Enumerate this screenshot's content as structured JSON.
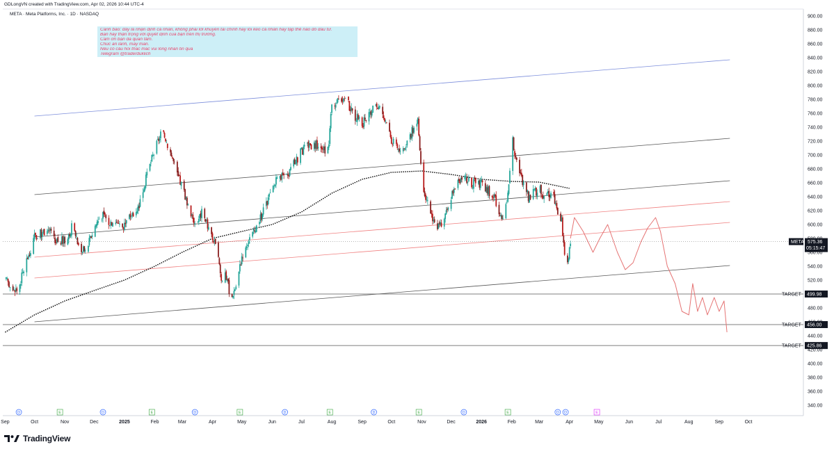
{
  "header": {
    "credit": "GDLongVN created with TradingView.com, Apr 02, 2026 10:44 UTC-4",
    "symbol_line": "META · Meta Platforms, Inc. · 1D · NASDAQ"
  },
  "note": {
    "lines": [
      "Cảnh báo: đây là nhận định cá nhân, không phải lời khuyên tài chính hay lôi kéo cá nhân hay tập thể nào đó đầu tư.",
      "Bạn hãy thận trọng với quyết định của bạn trên thị trường.",
      "Cảm ơn bạn đã quan tâm.",
      "Chúc an lành, may mắn.",
      "Nếu có câu hỏi thắc mắc vui lòng nhắn tin qua",
      "Telegram @traderduklich"
    ]
  },
  "footer": {
    "brand": "TradingView"
  },
  "colors": {
    "up": "#26a69a",
    "down": "#b71c1c",
    "candle_dark": "#8a1f1f",
    "upper_channel": "#7b8ddb",
    "mid_channel": "#555555",
    "red_channel": "#f08080",
    "projection": "#e57373",
    "moving_average": "#000000"
  },
  "chart_data": {
    "type": "candlestick",
    "symbol": "META",
    "title": "META · Meta Platforms, Inc. · 1D · NASDAQ",
    "ylim": [
      325,
      910
    ],
    "y_ticks": [
      340,
      360,
      380,
      400,
      420,
      440,
      460,
      480,
      500,
      520,
      540,
      560,
      580,
      600,
      620,
      640,
      660,
      680,
      700,
      720,
      740,
      760,
      780,
      800,
      820,
      840,
      860,
      880,
      900
    ],
    "y_tick_labels": [
      "340.00",
      "360.00",
      "380.00",
      "400.00",
      "420.00",
      "440.00",
      "460.00",
      "480.00",
      "500.00",
      "520.00",
      "540.00",
      "560.00",
      "580.00",
      "600.00",
      "620.00",
      "640.00",
      "660.00",
      "680.00",
      "700.00",
      "720.00",
      "740.00",
      "760.00",
      "780.00",
      "800.00",
      "820.00",
      "840.00",
      "860.00",
      "880.00",
      "900.00"
    ],
    "x_labels": [
      "Sep",
      "Oct",
      "Nov",
      "Dec",
      "2025",
      "Feb",
      "Mar",
      "Apr",
      "May",
      "Jun",
      "Jul",
      "Aug",
      "Sep",
      "Oct",
      "Nov",
      "Dec",
      "2026",
      "Feb",
      "Mar",
      "Apr",
      "May",
      "Jun",
      "Jul",
      "Aug",
      "Sep",
      "Oct"
    ],
    "x_label_dates": [
      "2024-09-01",
      "2024-10-01",
      "2024-11-01",
      "2024-12-01",
      "2025-01-01",
      "2025-02-01",
      "2025-03-01",
      "2025-04-01",
      "2025-05-01",
      "2025-06-01",
      "2025-07-01",
      "2025-08-01",
      "2025-09-01",
      "2025-10-01",
      "2025-11-01",
      "2025-12-01",
      "2026-01-01",
      "2026-02-01",
      "2026-03-01",
      "2026-04-01",
      "2026-05-01",
      "2026-06-01",
      "2026-07-01",
      "2026-08-01",
      "2026-09-01",
      "2026-10-01"
    ],
    "price_path": [
      [
        "2024-09-01",
        520
      ],
      [
        "2024-09-08",
        510
      ],
      [
        "2024-09-14",
        505
      ],
      [
        "2024-09-22",
        545
      ],
      [
        "2024-10-01",
        580
      ],
      [
        "2024-10-08",
        588
      ],
      [
        "2024-10-15",
        595
      ],
      [
        "2024-10-22",
        575
      ],
      [
        "2024-11-01",
        578
      ],
      [
        "2024-11-08",
        595
      ],
      [
        "2024-11-15",
        570
      ],
      [
        "2024-11-22",
        560
      ],
      [
        "2024-12-01",
        595
      ],
      [
        "2024-12-08",
        615
      ],
      [
        "2024-12-15",
        605
      ],
      [
        "2024-12-22",
        605
      ],
      [
        "2025-01-01",
        600
      ],
      [
        "2025-01-08",
        615
      ],
      [
        "2025-01-15",
        625
      ],
      [
        "2025-01-22",
        660
      ],
      [
        "2025-01-28",
        690
      ],
      [
        "2025-02-03",
        715
      ],
      [
        "2025-02-08",
        735
      ],
      [
        "2025-02-12",
        725
      ],
      [
        "2025-02-18",
        700
      ],
      [
        "2025-02-24",
        670
      ],
      [
        "2025-03-01",
        655
      ],
      [
        "2025-03-08",
        625
      ],
      [
        "2025-03-15",
        600
      ],
      [
        "2025-03-22",
        620
      ],
      [
        "2025-04-01",
        580
      ],
      [
        "2025-04-06",
        560
      ],
      [
        "2025-04-10",
        520
      ],
      [
        "2025-04-14",
        530
      ],
      [
        "2025-04-20",
        495
      ],
      [
        "2025-04-26",
        515
      ],
      [
        "2025-05-01",
        555
      ],
      [
        "2025-05-08",
        580
      ],
      [
        "2025-05-15",
        590
      ],
      [
        "2025-05-22",
        615
      ],
      [
        "2025-06-01",
        650
      ],
      [
        "2025-06-08",
        670
      ],
      [
        "2025-06-15",
        665
      ],
      [
        "2025-06-22",
        685
      ],
      [
        "2025-07-01",
        705
      ],
      [
        "2025-07-08",
        715
      ],
      [
        "2025-07-15",
        715
      ],
      [
        "2025-07-22",
        710
      ],
      [
        "2025-07-28",
        705
      ],
      [
        "2025-08-01",
        770
      ],
      [
        "2025-08-08",
        780
      ],
      [
        "2025-08-15",
        785
      ],
      [
        "2025-08-22",
        760
      ],
      [
        "2025-09-01",
        745
      ],
      [
        "2025-09-08",
        755
      ],
      [
        "2025-09-15",
        775
      ],
      [
        "2025-09-22",
        760
      ],
      [
        "2025-10-01",
        720
      ],
      [
        "2025-10-08",
        710
      ],
      [
        "2025-10-15",
        715
      ],
      [
        "2025-10-22",
        735
      ],
      [
        "2025-10-28",
        750
      ],
      [
        "2025-11-01",
        665
      ],
      [
        "2025-11-08",
        625
      ],
      [
        "2025-11-15",
        600
      ],
      [
        "2025-11-22",
        595
      ],
      [
        "2025-12-01",
        640
      ],
      [
        "2025-12-08",
        660
      ],
      [
        "2025-12-15",
        665
      ],
      [
        "2025-12-22",
        660
      ],
      [
        "2026-01-01",
        660
      ],
      [
        "2026-01-08",
        650
      ],
      [
        "2026-01-15",
        635
      ],
      [
        "2026-01-22",
        610
      ],
      [
        "2026-01-28",
        640
      ],
      [
        "2026-02-01",
        725
      ],
      [
        "2026-02-05",
        700
      ],
      [
        "2026-02-10",
        670
      ],
      [
        "2026-02-18",
        640
      ],
      [
        "2026-02-24",
        645
      ],
      [
        "2026-03-01",
        650
      ],
      [
        "2026-03-08",
        640
      ],
      [
        "2026-03-15",
        645
      ],
      [
        "2026-03-20",
        620
      ],
      [
        "2026-03-24",
        605
      ],
      [
        "2026-03-27",
        555
      ],
      [
        "2026-03-30",
        540
      ],
      [
        "2026-04-02",
        575
      ]
    ],
    "moving_average_path": [
      [
        "2024-09-01",
        445
      ],
      [
        "2024-10-01",
        470
      ],
      [
        "2024-11-01",
        490
      ],
      [
        "2024-12-01",
        505
      ],
      [
        "2025-01-01",
        520
      ],
      [
        "2025-02-01",
        540
      ],
      [
        "2025-03-01",
        560
      ],
      [
        "2025-04-01",
        580
      ],
      [
        "2025-05-01",
        590
      ],
      [
        "2025-06-01",
        600
      ],
      [
        "2025-07-01",
        618
      ],
      [
        "2025-08-01",
        645
      ],
      [
        "2025-09-01",
        665
      ],
      [
        "2025-10-01",
        675
      ],
      [
        "2025-11-01",
        677
      ],
      [
        "2025-12-01",
        672
      ],
      [
        "2026-01-01",
        665
      ],
      [
        "2026-02-01",
        662
      ],
      [
        "2026-03-01",
        661
      ],
      [
        "2026-04-01",
        652
      ]
    ],
    "projection_path": [
      [
        "2026-04-02",
        580
      ],
      [
        "2026-04-06",
        610
      ],
      [
        "2026-04-15",
        590
      ],
      [
        "2026-04-25",
        560
      ],
      [
        "2026-05-02",
        580
      ],
      [
        "2026-05-10",
        600
      ],
      [
        "2026-05-20",
        560
      ],
      [
        "2026-05-28",
        535
      ],
      [
        "2026-06-05",
        545
      ],
      [
        "2026-06-13",
        575
      ],
      [
        "2026-06-20",
        595
      ],
      [
        "2026-06-28",
        610
      ],
      [
        "2026-07-03",
        590
      ],
      [
        "2026-07-10",
        540
      ],
      [
        "2026-07-18",
        515
      ],
      [
        "2026-07-25",
        475
      ],
      [
        "2026-08-01",
        470
      ],
      [
        "2026-08-05",
        515
      ],
      [
        "2026-08-10",
        475
      ],
      [
        "2026-08-15",
        495
      ],
      [
        "2026-08-20",
        470
      ],
      [
        "2026-08-27",
        495
      ],
      [
        "2026-09-01",
        475
      ],
      [
        "2026-09-06",
        490
      ],
      [
        "2026-09-09",
        445
      ]
    ],
    "trend_lines": [
      {
        "kind": "upper-channel",
        "from": [
          "2024-10-01",
          756
        ],
        "to": [
          "2026-09-12",
          837
        ]
      },
      {
        "kind": "mid-channel",
        "from": [
          "2024-10-01",
          643
        ],
        "to": [
          "2026-09-12",
          724
        ]
      },
      {
        "kind": "channel",
        "from": [
          "2024-10-01",
          460
        ],
        "to": [
          "2026-09-12",
          541
        ]
      },
      {
        "kind": "channel",
        "from": [
          "2024-10-01",
          582
        ],
        "to": [
          "2026-09-12",
          663
        ]
      },
      {
        "kind": "red-channel",
        "from": [
          "2024-10-01",
          553
        ],
        "to": [
          "2026-09-12",
          633
        ]
      },
      {
        "kind": "red-channel",
        "from": [
          "2024-10-01",
          523
        ],
        "to": [
          "2026-09-12",
          603
        ]
      }
    ],
    "horizontal_levels": [
      {
        "label": "TARGET",
        "value": 499.98,
        "value_label": "499.98"
      },
      {
        "label": "TARGET",
        "value": 456.0,
        "value_label": "456.00"
      },
      {
        "label": "TARGET",
        "value": 425.86,
        "value_label": "425.86"
      }
    ],
    "last_price": {
      "symbol": "META",
      "value": 575.36,
      "value_label": "575.36",
      "countdown": "05:15:47"
    },
    "event_markers": [
      {
        "date": "2024-09-15",
        "letter": "D"
      },
      {
        "date": "2024-10-27",
        "letter": "E"
      },
      {
        "date": "2024-12-10",
        "letter": "D"
      },
      {
        "date": "2025-01-29",
        "letter": "E"
      },
      {
        "date": "2025-03-14",
        "letter": "D"
      },
      {
        "date": "2025-04-29",
        "letter": "E"
      },
      {
        "date": "2025-06-14",
        "letter": "D"
      },
      {
        "date": "2025-07-30",
        "letter": "E"
      },
      {
        "date": "2025-09-13",
        "letter": "D"
      },
      {
        "date": "2025-10-29",
        "letter": "E"
      },
      {
        "date": "2025-12-14",
        "letter": "D"
      },
      {
        "date": "2026-01-28",
        "letter": "E"
      },
      {
        "date": "2026-03-20",
        "letter": "D"
      },
      {
        "date": "2026-03-28",
        "letter": "D"
      },
      {
        "date": "2026-04-29",
        "letter": "E"
      }
    ]
  }
}
